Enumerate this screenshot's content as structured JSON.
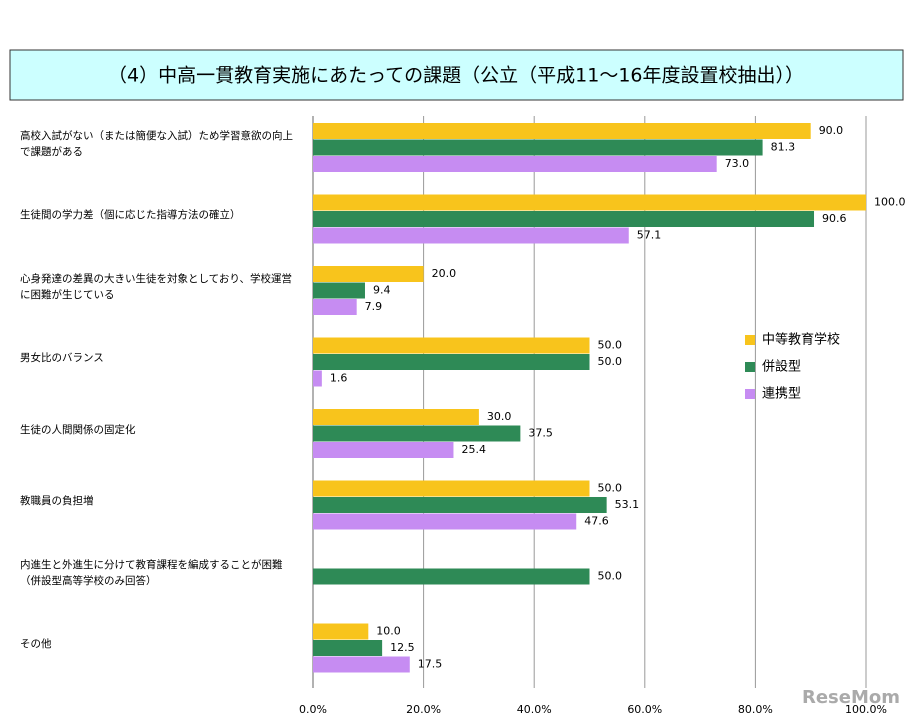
{
  "chart_data": {
    "type": "bar",
    "orientation": "horizontal",
    "title": "（4）中高一貫教育実施にあたっての課題（公立（平成11～16年度設置校抽出））",
    "categories": [
      "高校入試がない（または簡便な入試）ため学習意欲の向上で課題がある",
      "生徒間の学力差（個に応じた指導方法の確立）",
      "心身発達の差異の大きい生徒を対象としており、学校運営に困難が生じている",
      "男女比のバランス",
      "生徒の人間関係の固定化",
      "教職員の負担増",
      "内進生と外進生に分けて教育課程を編成することが困難（併設型高等学校のみ回答）",
      "その他"
    ],
    "series": [
      {
        "name": "中等教育学校",
        "color": "#f8c41c",
        "values": [
          90,
          100,
          20,
          50,
          30,
          50,
          null,
          10
        ],
        "value_labels": [
          "90.0",
          "100.0",
          "20.0",
          "50.0",
          "30.0",
          "50.0",
          null,
          "10.0"
        ]
      },
      {
        "name": "併設型",
        "color": "#2e8a56",
        "values": [
          81.3,
          90.6,
          9.4,
          50,
          37.5,
          53.1,
          50,
          12.5
        ],
        "value_labels": [
          "81.3",
          "90.6",
          "9.4",
          "50.0",
          "37.5",
          "53.1",
          "50.0",
          "12.5"
        ]
      },
      {
        "name": "連携型",
        "color": "#c68cf2",
        "values": [
          73,
          57.1,
          7.9,
          1.6,
          25.4,
          47.6,
          null,
          17.5
        ],
        "value_labels": [
          "73.0",
          "57.1",
          "7.9",
          "1.6",
          "25.4",
          "47.6",
          null,
          "17.5"
        ]
      }
    ],
    "xlim": [
      0,
      100
    ],
    "xticks": [
      {
        "value": 0,
        "label": "0.0%"
      },
      {
        "value": 20,
        "label": "20.0%"
      },
      {
        "value": 40,
        "label": "40.0%"
      },
      {
        "value": 60,
        "label": "60.0%"
      },
      {
        "value": 80,
        "label": "80.0%"
      },
      {
        "value": 100,
        "label": "100.0%"
      }
    ],
    "grid": true,
    "legend": "right",
    "watermark": "ReseMom"
  }
}
